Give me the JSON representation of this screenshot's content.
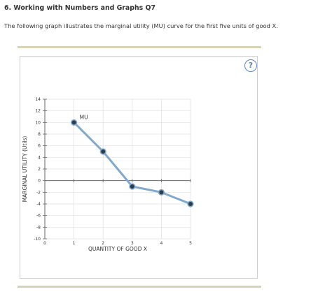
{
  "question": {
    "heading": "6. Working with Numbers and Graphs Q7",
    "intro": "The following graph illustrates the marginal utility (MU) curve for the first five units of good X."
  },
  "help_button": {
    "label": "?",
    "icon": "question-circle-icon"
  },
  "colors": {
    "rule": "#d8d3b5",
    "line": "#7fa9cf",
    "marker_fill": "#2f3d4a",
    "help": "#5a88c0",
    "grid": "#e0e0e0"
  },
  "chart_data": {
    "type": "line",
    "xlabel": "QUANTITY OF GOOD X",
    "ylabel": "MARGINAL UTILITY (Utils)",
    "xlim": [
      0,
      5
    ],
    "ylim": [
      -10,
      14
    ],
    "xticks": [
      "0",
      "1",
      "2",
      "3",
      "4",
      "5"
    ],
    "yticks": [
      "-10",
      "-8",
      "-6",
      "-4",
      "-2",
      "0",
      "2",
      "4",
      "6",
      "8",
      "10",
      "12",
      "14"
    ],
    "grid": true,
    "series": [
      {
        "name": "MU",
        "x": [
          1,
          2,
          3,
          4,
          5
        ],
        "y": [
          10,
          5,
          -1,
          -2,
          -4
        ]
      }
    ]
  }
}
